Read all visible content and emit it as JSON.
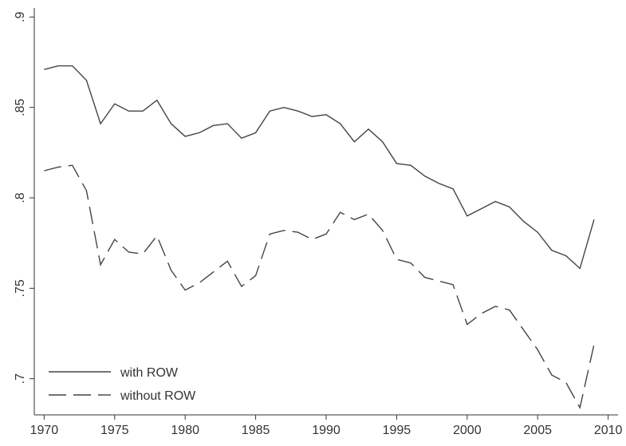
{
  "chart_data": {
    "type": "line",
    "x": [
      1970,
      1971,
      1972,
      1973,
      1974,
      1975,
      1976,
      1977,
      1978,
      1979,
      1980,
      1981,
      1982,
      1983,
      1984,
      1985,
      1986,
      1987,
      1988,
      1989,
      1990,
      1991,
      1992,
      1993,
      1994,
      1995,
      1996,
      1997,
      1998,
      1999,
      2000,
      2001,
      2002,
      2003,
      2004,
      2005,
      2006,
      2007,
      2008,
      2009
    ],
    "series": [
      {
        "name": "with ROW",
        "color": "#444444",
        "style": "solid",
        "values": [
          0.871,
          0.873,
          0.873,
          0.865,
          0.841,
          0.852,
          0.848,
          0.848,
          0.854,
          0.841,
          0.834,
          0.836,
          0.84,
          0.841,
          0.833,
          0.836,
          0.848,
          0.85,
          0.848,
          0.845,
          0.846,
          0.841,
          0.831,
          0.838,
          0.831,
          0.819,
          0.818,
          0.812,
          0.808,
          0.805,
          0.79,
          0.794,
          0.798,
          0.795,
          0.787,
          0.781,
          0.771,
          0.768,
          0.761,
          0.788
        ]
      },
      {
        "name": "without ROW",
        "color": "#444444",
        "style": "dashed",
        "values": [
          0.815,
          0.817,
          0.818,
          0.804,
          0.763,
          0.777,
          0.77,
          0.769,
          0.779,
          0.76,
          0.749,
          0.753,
          0.759,
          0.765,
          0.751,
          0.757,
          0.78,
          0.782,
          0.781,
          0.777,
          0.78,
          0.792,
          0.788,
          0.791,
          0.782,
          0.766,
          0.764,
          0.756,
          0.754,
          0.752,
          0.73,
          0.736,
          0.74,
          0.738,
          0.727,
          0.716,
          0.702,
          0.698,
          0.684,
          0.719
        ]
      }
    ],
    "xlim": [
      1969.3,
      2010.7
    ],
    "xticks": [
      1970,
      1975,
      1980,
      1985,
      1990,
      1995,
      2000,
      2005,
      2010
    ],
    "ylim": [
      0.68,
      0.905
    ],
    "yticks": [
      {
        "value": 0.7,
        "label": ".7"
      },
      {
        "value": 0.75,
        "label": ".75"
      },
      {
        "value": 0.8,
        "label": ".8"
      },
      {
        "value": 0.85,
        "label": ".85"
      },
      {
        "value": 0.9,
        "label": ".9"
      }
    ],
    "legend": "lower left"
  }
}
